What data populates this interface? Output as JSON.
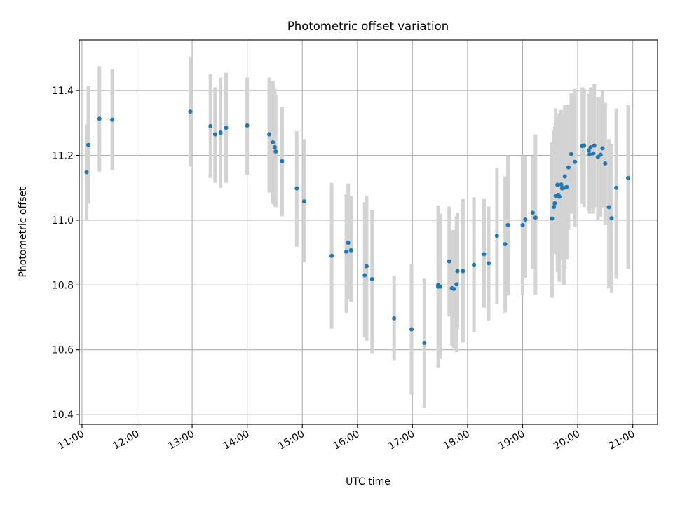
{
  "chart_data": {
    "type": "scatter",
    "title": "Photometric offset variation",
    "xlabel": "UTC time",
    "ylabel": "Photometric offset",
    "x_ticks": [
      "11:00",
      "12:00",
      "13:00",
      "14:00",
      "15:00",
      "16:00",
      "17:00",
      "18:00",
      "19:00",
      "20:00",
      "21:00"
    ],
    "y_ticks": [
      "10.4",
      "10.6",
      "10.8",
      "11.0",
      "11.2",
      "11.4"
    ],
    "xlim": [
      "10:57",
      "21:27"
    ],
    "ylim": [
      10.37,
      11.556
    ],
    "grid": true,
    "colors": {
      "point": "#1f77b4",
      "error_bar": "#d3d3d3"
    },
    "series": [
      {
        "x": [
          "11:05",
          "11:07",
          "11:19",
          "11:33",
          "12:58",
          "13:20",
          "13:25",
          "13:31",
          "13:37",
          "14:00",
          "14:24",
          "14:28",
          "14:30",
          "14:31",
          "14:38",
          "14:54",
          "15:02",
          "15:32",
          "15:48",
          "15:50",
          "15:53",
          "16:08",
          "16:10",
          "16:16",
          "16:40",
          "16:59",
          "17:13",
          "17:28",
          "17:28",
          "17:30",
          "17:40",
          "17:43",
          "17:45",
          "17:48",
          "17:49",
          "17:55",
          "18:07",
          "18:18",
          "18:23",
          "18:32",
          "18:41",
          "18:44",
          "19:00",
          "19:03",
          "19:11",
          "19:14",
          "19:32",
          "19:34",
          "19:35",
          "19:36",
          "19:38",
          "19:39",
          "19:40",
          "19:42",
          "19:43",
          "19:45",
          "19:46",
          "19:48",
          "19:50",
          "19:53",
          "19:57",
          "20:05",
          "20:07",
          "20:12",
          "20:13",
          "20:14",
          "20:17",
          "20:18",
          "20:22",
          "20:25",
          "20:27",
          "20:30",
          "20:34",
          "20:37",
          "20:42",
          "20:55"
        ],
        "y": [
          11.148,
          11.232,
          11.313,
          11.31,
          11.335,
          11.29,
          11.265,
          11.27,
          11.285,
          11.292,
          11.265,
          11.24,
          11.225,
          11.212,
          11.182,
          11.098,
          11.058,
          10.89,
          10.903,
          10.93,
          10.907,
          10.83,
          10.858,
          10.818,
          10.697,
          10.663,
          10.621,
          10.8,
          10.795,
          10.795,
          10.873,
          10.79,
          10.788,
          10.802,
          10.843,
          10.843,
          10.862,
          10.895,
          10.867,
          10.952,
          10.926,
          10.985,
          10.985,
          11.002,
          11.023,
          11.008,
          11.005,
          11.041,
          11.052,
          11.075,
          11.109,
          11.078,
          11.072,
          11.11,
          11.098,
          11.1,
          11.135,
          11.102,
          11.163,
          11.204,
          11.18,
          11.229,
          11.23,
          11.215,
          11.203,
          11.225,
          11.206,
          11.23,
          11.195,
          11.202,
          11.222,
          11.175,
          11.04,
          11.006,
          11.1,
          11.13
        ],
        "yerr_low": [
          11.0,
          11.05,
          11.15,
          11.155,
          11.165,
          11.13,
          11.115,
          11.1,
          11.115,
          11.14,
          11.085,
          11.05,
          11.045,
          11.04,
          11.012,
          10.918,
          10.87,
          10.665,
          10.714,
          10.758,
          10.748,
          10.64,
          10.628,
          10.59,
          10.568,
          10.462,
          10.42,
          10.549,
          10.545,
          10.572,
          10.703,
          10.612,
          10.605,
          10.593,
          10.664,
          10.622,
          10.655,
          10.73,
          10.69,
          10.742,
          10.715,
          10.768,
          10.768,
          10.822,
          10.85,
          10.77,
          10.76,
          10.9,
          10.9,
          10.895,
          10.84,
          10.87,
          10.81,
          10.9,
          10.88,
          10.8,
          10.85,
          10.88,
          10.97,
          11.02,
          10.98,
          11.05,
          11.04,
          11.03,
          11.02,
          11.04,
          11.02,
          11.04,
          11.0,
          11.01,
          11.04,
          10.985,
          10.79,
          10.775,
          10.82,
          10.85
        ],
        "yerr_high": [
          11.295,
          11.415,
          11.475,
          11.465,
          11.505,
          11.45,
          11.41,
          11.44,
          11.455,
          11.44,
          11.44,
          11.43,
          11.405,
          11.385,
          11.35,
          11.275,
          11.25,
          11.115,
          11.08,
          11.112,
          11.075,
          11.055,
          11.075,
          11.03,
          10.828,
          10.865,
          10.82,
          11.045,
          11.045,
          11.02,
          11.042,
          10.968,
          10.97,
          11.012,
          11.022,
          11.065,
          11.07,
          11.065,
          11.042,
          11.162,
          11.135,
          11.2,
          11.2,
          11.198,
          11.198,
          11.265,
          11.24,
          11.275,
          11.29,
          11.345,
          11.32,
          11.29,
          11.33,
          11.34,
          11.325,
          11.325,
          11.355,
          11.355,
          11.357,
          11.392,
          11.405,
          11.41,
          11.405,
          11.39,
          11.385,
          11.41,
          11.39,
          11.42,
          11.38,
          11.38,
          11.4,
          11.362,
          11.25,
          11.235,
          11.345,
          11.355
        ]
      }
    ]
  }
}
